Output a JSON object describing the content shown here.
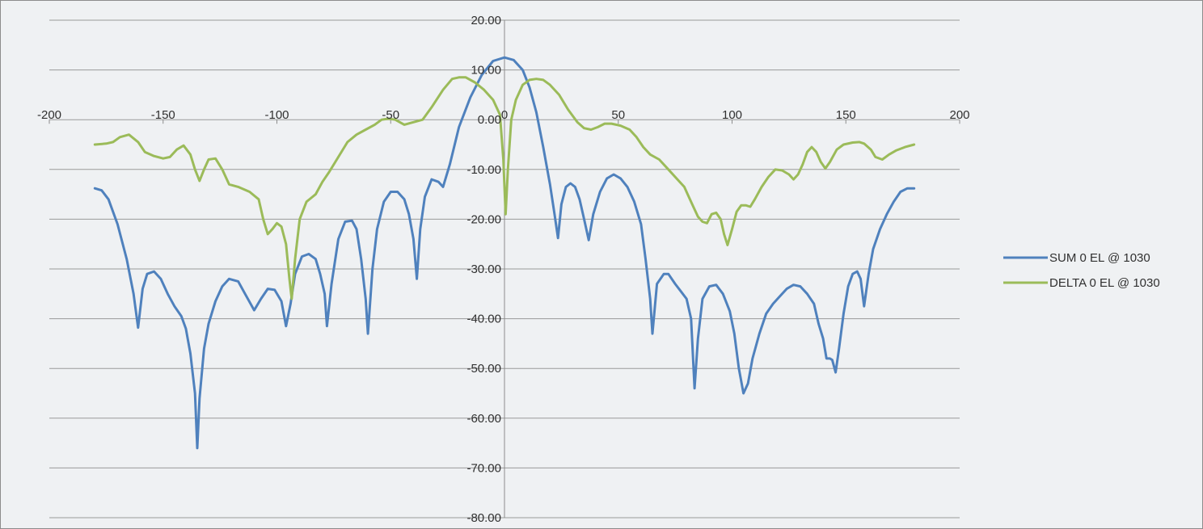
{
  "chart_data": {
    "type": "line",
    "title": "",
    "xlabel": "",
    "ylabel": "",
    "xlim": [
      -200,
      200
    ],
    "ylim": [
      -80,
      20
    ],
    "x_ticks": [
      -200,
      -150,
      -100,
      -50,
      0,
      50,
      100,
      150,
      200
    ],
    "y_ticks": [
      20,
      10,
      0,
      -10,
      -20,
      -30,
      -40,
      -50,
      -60,
      -70,
      -80
    ],
    "x_tick_labels": [
      "-200",
      "-150",
      "-100",
      "-50",
      "0",
      "50",
      "100",
      "150",
      "200"
    ],
    "y_tick_labels": [
      "20.00",
      "10.00",
      "0.00",
      "-10.00",
      "-20.00",
      "-30.00",
      "-40.00",
      "-50.00",
      "-60.00",
      "-70.00",
      "-80.00"
    ],
    "grid": "horizontal",
    "legend_position": "right",
    "series": [
      {
        "name": "SUM 0 EL @ 1030",
        "color": "#4f81bd",
        "points": [
          [
            -180,
            -13.8
          ],
          [
            -177,
            -14.2
          ],
          [
            -174,
            -16
          ],
          [
            -170,
            -21
          ],
          [
            -166,
            -28
          ],
          [
            -163,
            -35
          ],
          [
            -161,
            -41.8
          ],
          [
            -159,
            -34
          ],
          [
            -157,
            -31
          ],
          [
            -154,
            -30.5
          ],
          [
            -151,
            -32
          ],
          [
            -148,
            -35
          ],
          [
            -145,
            -37.5
          ],
          [
            -142,
            -39.5
          ],
          [
            -140,
            -42
          ],
          [
            -138,
            -47
          ],
          [
            -136,
            -55
          ],
          [
            -135,
            -66
          ],
          [
            -134,
            -56
          ],
          [
            -132,
            -46
          ],
          [
            -130,
            -41
          ],
          [
            -127,
            -36.5
          ],
          [
            -124,
            -33.5
          ],
          [
            -121,
            -32
          ],
          [
            -117,
            -32.5
          ],
          [
            -114,
            -35
          ],
          [
            -110,
            -38.3
          ],
          [
            -107,
            -36
          ],
          [
            -104,
            -34
          ],
          [
            -101,
            -34.2
          ],
          [
            -98,
            -36.5
          ],
          [
            -96,
            -41.5
          ],
          [
            -94,
            -37
          ],
          [
            -92,
            -31
          ],
          [
            -89,
            -27.5
          ],
          [
            -86,
            -27
          ],
          [
            -83,
            -28
          ],
          [
            -81,
            -31
          ],
          [
            -79,
            -35
          ],
          [
            -78,
            -41.5
          ],
          [
            -76,
            -33
          ],
          [
            -73,
            -24
          ],
          [
            -70,
            -20.5
          ],
          [
            -67,
            -20.3
          ],
          [
            -65,
            -22
          ],
          [
            -63,
            -28
          ],
          [
            -61,
            -36
          ],
          [
            -60,
            -43
          ],
          [
            -58,
            -30
          ],
          [
            -56,
            -22
          ],
          [
            -53,
            -16.5
          ],
          [
            -50,
            -14.5
          ],
          [
            -47,
            -14.5
          ],
          [
            -44,
            -16
          ],
          [
            -42,
            -19
          ],
          [
            -40,
            -24
          ],
          [
            -38.5,
            -32
          ],
          [
            -37,
            -22
          ],
          [
            -35,
            -15.5
          ],
          [
            -32,
            -12
          ],
          [
            -29,
            -12.5
          ],
          [
            -27,
            -13.5
          ],
          [
            -24,
            -9
          ],
          [
            -20,
            -1.5
          ],
          [
            -15,
            4.5
          ],
          [
            -10,
            9
          ],
          [
            -5,
            11.8
          ],
          [
            0,
            12.5
          ],
          [
            4,
            12
          ],
          [
            8,
            10
          ],
          [
            11,
            6.5
          ],
          [
            14,
            1.5
          ],
          [
            17,
            -5.5
          ],
          [
            20,
            -13
          ],
          [
            22,
            -19
          ],
          [
            23.5,
            -23.8
          ],
          [
            25,
            -17
          ],
          [
            27,
            -13.5
          ],
          [
            29,
            -12.8
          ],
          [
            31,
            -13.5
          ],
          [
            33,
            -16
          ],
          [
            35,
            -20
          ],
          [
            37,
            -24.2
          ],
          [
            39,
            -19
          ],
          [
            42,
            -14.5
          ],
          [
            45,
            -11.8
          ],
          [
            48,
            -11
          ],
          [
            51,
            -11.8
          ],
          [
            54,
            -13.5
          ],
          [
            57,
            -16.5
          ],
          [
            60,
            -21
          ],
          [
            62,
            -28
          ],
          [
            64,
            -36
          ],
          [
            65,
            -43
          ],
          [
            67,
            -33
          ],
          [
            70,
            -31
          ],
          [
            72,
            -31
          ],
          [
            75,
            -33
          ],
          [
            77,
            -34.2
          ],
          [
            80,
            -36
          ],
          [
            82,
            -40
          ],
          [
            83.5,
            -54
          ],
          [
            85,
            -44
          ],
          [
            87,
            -36
          ],
          [
            90,
            -33.5
          ],
          [
            93,
            -33.2
          ],
          [
            96,
            -35
          ],
          [
            99,
            -38.5
          ],
          [
            101,
            -43
          ],
          [
            103,
            -50
          ],
          [
            105,
            -55
          ],
          [
            107,
            -53
          ],
          [
            109,
            -48
          ],
          [
            112,
            -43
          ],
          [
            115,
            -39
          ],
          [
            118,
            -37
          ],
          [
            121,
            -35.5
          ],
          [
            124,
            -34
          ],
          [
            127,
            -33.2
          ],
          [
            130,
            -33.5
          ],
          [
            133,
            -35
          ],
          [
            136,
            -37
          ],
          [
            138,
            -41
          ],
          [
            140,
            -44
          ],
          [
            141.5,
            -48
          ],
          [
            143,
            -48
          ],
          [
            144,
            -48.3
          ],
          [
            145.5,
            -50.8
          ],
          [
            147,
            -46
          ],
          [
            149,
            -39
          ],
          [
            151,
            -33.5
          ],
          [
            153,
            -31
          ],
          [
            155,
            -30.5
          ],
          [
            156.5,
            -32
          ],
          [
            158,
            -37.5
          ],
          [
            160,
            -31
          ],
          [
            162,
            -26
          ],
          [
            165,
            -22
          ],
          [
            168,
            -19
          ],
          [
            171,
            -16.5
          ],
          [
            174,
            -14.5
          ],
          [
            177,
            -13.8
          ],
          [
            180,
            -13.8
          ]
        ]
      },
      {
        "name": "DELTA 0 EL @ 1030",
        "color": "#9bbb59",
        "points": [
          [
            -180,
            -5
          ],
          [
            -175,
            -4.8
          ],
          [
            -172,
            -4.5
          ],
          [
            -169,
            -3.5
          ],
          [
            -165,
            -3
          ],
          [
            -161,
            -4.5
          ],
          [
            -158,
            -6.5
          ],
          [
            -154,
            -7.3
          ],
          [
            -150,
            -7.8
          ],
          [
            -147,
            -7.5
          ],
          [
            -144,
            -6
          ],
          [
            -141,
            -5.2
          ],
          [
            -138,
            -7
          ],
          [
            -136,
            -10
          ],
          [
            -134,
            -12.3
          ],
          [
            -132,
            -10
          ],
          [
            -130,
            -8
          ],
          [
            -127,
            -7.8
          ],
          [
            -124,
            -10
          ],
          [
            -121,
            -13
          ],
          [
            -117,
            -13.5
          ],
          [
            -112,
            -14.5
          ],
          [
            -108,
            -16
          ],
          [
            -106,
            -20
          ],
          [
            -104,
            -23
          ],
          [
            -102,
            -22
          ],
          [
            -100,
            -20.8
          ],
          [
            -98,
            -21.5
          ],
          [
            -96,
            -25
          ],
          [
            -94.5,
            -32
          ],
          [
            -93.5,
            -36
          ],
          [
            -92,
            -28
          ],
          [
            -90,
            -20
          ],
          [
            -87,
            -16.5
          ],
          [
            -83,
            -15
          ],
          [
            -80,
            -12.5
          ],
          [
            -77,
            -10.5
          ],
          [
            -73,
            -7.5
          ],
          [
            -69,
            -4.5
          ],
          [
            -65,
            -3
          ],
          [
            -61,
            -2
          ],
          [
            -57,
            -1
          ],
          [
            -54,
            0
          ],
          [
            -51,
            0.2
          ],
          [
            -48,
            0
          ],
          [
            -44,
            -1
          ],
          [
            -40,
            -0.5
          ],
          [
            -36,
            0
          ],
          [
            -32,
            2.5
          ],
          [
            -27,
            6
          ],
          [
            -23,
            8.2
          ],
          [
            -20,
            8.5
          ],
          [
            -17,
            8.5
          ],
          [
            -13,
            7.5
          ],
          [
            -9,
            6
          ],
          [
            -5,
            4
          ],
          [
            -2,
            1
          ],
          [
            -0.5,
            -8
          ],
          [
            0.5,
            -19
          ],
          [
            1.5,
            -10
          ],
          [
            3,
            0
          ],
          [
            5,
            4
          ],
          [
            8,
            7
          ],
          [
            11,
            8
          ],
          [
            14,
            8.2
          ],
          [
            17,
            8
          ],
          [
            20,
            7
          ],
          [
            24,
            5
          ],
          [
            28,
            2
          ],
          [
            32,
            -0.5
          ],
          [
            35,
            -1.7
          ],
          [
            38,
            -2
          ],
          [
            41,
            -1.5
          ],
          [
            44,
            -0.8
          ],
          [
            47,
            -0.8
          ],
          [
            51,
            -1.2
          ],
          [
            55,
            -2
          ],
          [
            58,
            -3.5
          ],
          [
            61,
            -5.5
          ],
          [
            64,
            -7
          ],
          [
            68,
            -8
          ],
          [
            72,
            -10
          ],
          [
            76,
            -12
          ],
          [
            79,
            -13.5
          ],
          [
            81,
            -15.5
          ],
          [
            83,
            -17.5
          ],
          [
            85,
            -19.5
          ],
          [
            87,
            -20.5
          ],
          [
            89,
            -20.8
          ],
          [
            91,
            -19
          ],
          [
            93,
            -18.7
          ],
          [
            95,
            -20
          ],
          [
            96.5,
            -23
          ],
          [
            98,
            -25.2
          ],
          [
            100,
            -22
          ],
          [
            102,
            -18.5
          ],
          [
            104,
            -17.2
          ],
          [
            106,
            -17.2
          ],
          [
            108,
            -17.5
          ],
          [
            110,
            -16
          ],
          [
            113,
            -13.5
          ],
          [
            116,
            -11.5
          ],
          [
            119,
            -10
          ],
          [
            122,
            -10.2
          ],
          [
            125,
            -11
          ],
          [
            127,
            -12
          ],
          [
            129,
            -11
          ],
          [
            131,
            -9
          ],
          [
            133,
            -6.5
          ],
          [
            135,
            -5.5
          ],
          [
            137,
            -6.5
          ],
          [
            139,
            -8.5
          ],
          [
            141,
            -9.8
          ],
          [
            143,
            -8.5
          ],
          [
            146,
            -6
          ],
          [
            149,
            -5
          ],
          [
            153,
            -4.6
          ],
          [
            156,
            -4.5
          ],
          [
            158,
            -4.8
          ],
          [
            161,
            -6
          ],
          [
            163,
            -7.5
          ],
          [
            166,
            -8
          ],
          [
            169,
            -7
          ],
          [
            172,
            -6.2
          ],
          [
            176,
            -5.5
          ],
          [
            180,
            -5
          ]
        ]
      }
    ]
  }
}
